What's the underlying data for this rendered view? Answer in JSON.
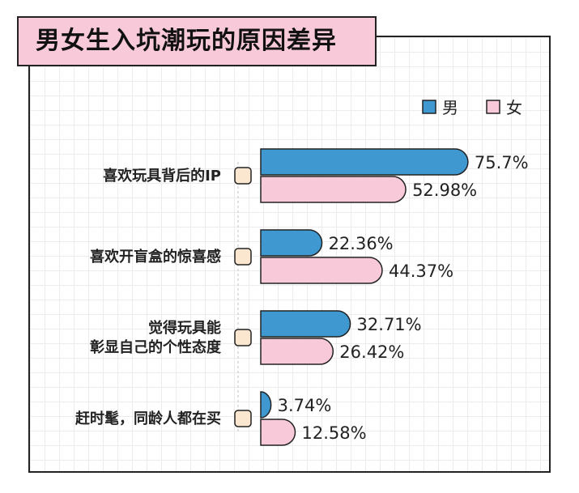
{
  "title": "男女生入坑潮玩的原因差异",
  "legend": {
    "placement": "top-right"
  },
  "colors": {
    "male": "#3f98d0",
    "female": "#f7c9d9",
    "title_bg": "#f7c9d9",
    "marker": "#fbe6cf"
  },
  "chart_data": {
    "type": "bar",
    "orientation": "horizontal",
    "title": "男女生入坑潮玩的原因差异",
    "categories": [
      [
        "喜欢玩具背后的IP"
      ],
      [
        "喜欢开盲盒的惊喜感"
      ],
      [
        "觉得玩具能",
        "彰显自己的个性态度"
      ],
      [
        "赶时髦，同龄人都在买"
      ]
    ],
    "series": [
      {
        "name": "男",
        "values": [
          75.7,
          22.36,
          32.71,
          3.74
        ],
        "labels": [
          "75.7%",
          "22.36%",
          "32.71%",
          "3.74%"
        ]
      },
      {
        "name": "女",
        "values": [
          52.98,
          44.37,
          26.42,
          12.58
        ],
        "labels": [
          "52.98%",
          "44.37%",
          "26.42%",
          "12.58%"
        ]
      }
    ],
    "xlim": [
      0,
      100
    ],
    "grid": true
  }
}
